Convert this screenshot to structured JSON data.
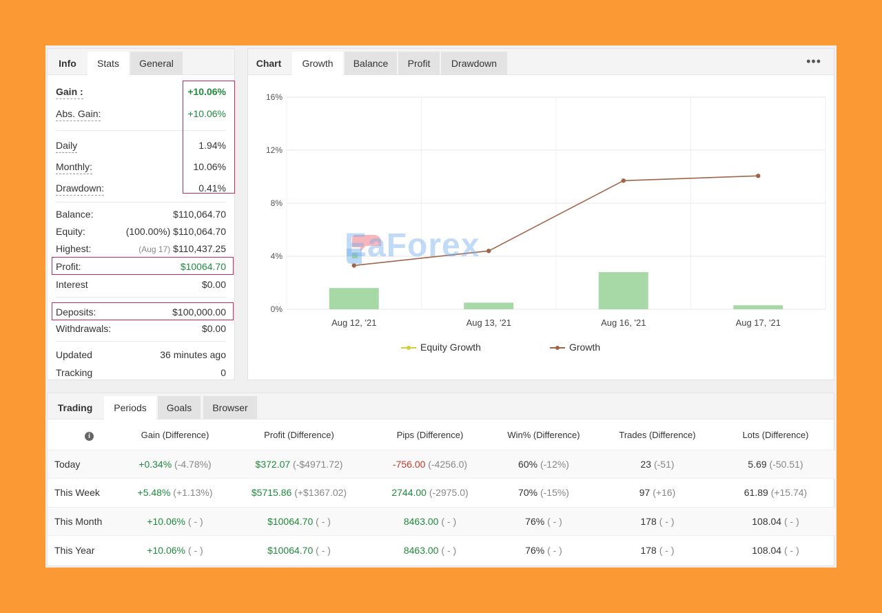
{
  "stats": {
    "tabs": [
      "Info",
      "Stats",
      "General"
    ],
    "gain_label": "Gain :",
    "gain_value": "+10.06%",
    "abs_gain_label": "Abs. Gain:",
    "abs_gain_value": "+10.06%",
    "daily_label": "Daily",
    "daily_value": "1.94%",
    "monthly_label": "Monthly:",
    "monthly_value": "10.06%",
    "drawdown_label": "Drawdown:",
    "drawdown_value": "0.41%",
    "balance_label": "Balance:",
    "balance_value": "$110,064.70",
    "equity_label": "Equity:",
    "equity_pct": "(100.00%)",
    "equity_value": "$110,064.70",
    "highest_label": "Highest:",
    "highest_date": "(Aug 17)",
    "highest_value": "$110,437.25",
    "profit_label": "Profit:",
    "profit_value": "$10064.70",
    "interest_label": "Interest",
    "interest_value": "$0.00",
    "deposits_label": "Deposits:",
    "deposits_value": "$100,000.00",
    "withdrawals_label": "Withdrawals:",
    "withdrawals_value": "$0.00",
    "updated_label": "Updated",
    "updated_value": "36 minutes ago",
    "tracking_label": "Tracking",
    "tracking_value": "0"
  },
  "chart": {
    "tabs": [
      "Chart",
      "Growth",
      "Balance",
      "Profit",
      "Drawdown"
    ],
    "menu_icon": "more-dots-icon",
    "watermark": "EaForex"
  },
  "chart_data": {
    "type": "line",
    "categories": [
      "Aug 12, '21",
      "Aug 13, '21",
      "Aug 16, '21",
      "Aug 17, '21"
    ],
    "series": [
      {
        "name": "Equity Growth",
        "type": "bar",
        "values": [
          1.6,
          0.5,
          2.8,
          0.3
        ],
        "color": "#a6d9a6"
      },
      {
        "name": "Growth",
        "type": "line",
        "values": [
          3.3,
          4.4,
          9.7,
          10.06
        ],
        "color": "#a0644a"
      }
    ],
    "legend_colors": {
      "Equity Growth": "#cfcf3a",
      "Growth": "#a0644a"
    },
    "y_ticks": [
      "0%",
      "4%",
      "8%",
      "12%",
      "16%"
    ],
    "ylim": [
      0,
      16
    ],
    "grid": true,
    "legend": "bottom"
  },
  "periods": {
    "tabs": [
      "Trading",
      "Periods",
      "Goals",
      "Browser"
    ],
    "columns": [
      "Gain (Difference)",
      "Profit (Difference)",
      "Pips (Difference)",
      "Win% (Difference)",
      "Trades (Difference)",
      "Lots (Difference)"
    ],
    "rows": [
      {
        "label": "Today",
        "gain": "+0.34%",
        "gain_diff": "(-4.78%)",
        "profit": "$372.07",
        "profit_diff": "(-$4971.72)",
        "pips": "-756.00",
        "pips_diff": "(-4256.0)",
        "win": "60%",
        "win_diff": "(-12%)",
        "trades": "23",
        "trades_diff": "(-51)",
        "lots": "5.69",
        "lots_diff": "(-50.51)",
        "pips_neg": true
      },
      {
        "label": "This Week",
        "gain": "+5.48%",
        "gain_diff": "(+1.13%)",
        "profit": "$5715.86",
        "profit_diff": "(+$1367.02)",
        "pips": "2744.00",
        "pips_diff": "(-2975.0)",
        "win": "70%",
        "win_diff": "(-15%)",
        "trades": "97",
        "trades_diff": "(+16)",
        "lots": "61.89",
        "lots_diff": "(+15.74)",
        "pips_neg": false
      },
      {
        "label": "This Month",
        "gain": "+10.06%",
        "gain_diff": "( - )",
        "profit": "$10064.70",
        "profit_diff": "( - )",
        "pips": "8463.00",
        "pips_diff": "( - )",
        "win": "76%",
        "win_diff": "( - )",
        "trades": "178",
        "trades_diff": "( - )",
        "lots": "108.04",
        "lots_diff": "( - )",
        "pips_neg": false
      },
      {
        "label": "This Year",
        "gain": "+10.06%",
        "gain_diff": "( - )",
        "profit": "$10064.70",
        "profit_diff": "( - )",
        "pips": "8463.00",
        "pips_diff": "( - )",
        "win": "76%",
        "win_diff": "( - )",
        "trades": "178",
        "trades_diff": "( - )",
        "lots": "108.04",
        "lots_diff": "( - )",
        "pips_neg": false
      }
    ]
  }
}
